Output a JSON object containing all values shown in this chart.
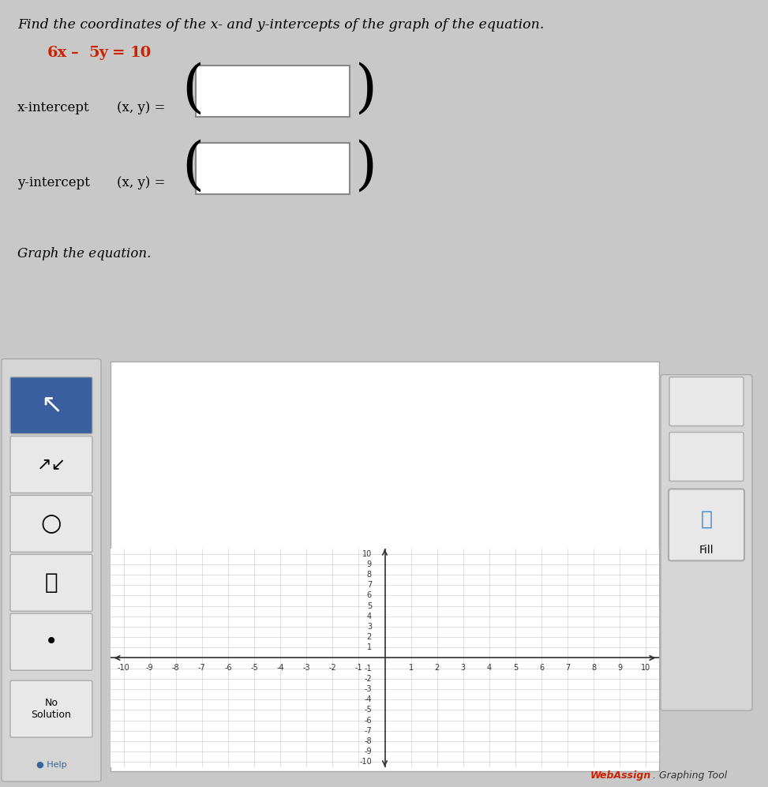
{
  "title_text": "Find the coordinates of the x- and y-intercepts of the graph of the equation.",
  "eq_parts": [
    "6x",
    " – ",
    "5y",
    " = ",
    "10"
  ],
  "eq_color": "#cc2200",
  "x_intercept_label": "x-intercept",
  "y_intercept_label": "y-intercept",
  "xy_label": "(x, y) =",
  "graph_title": "Graph the equation.",
  "webassign_red": "WebAssign",
  "webassign_black": ". Graphing Tool",
  "axis_min": -10,
  "axis_max": 10,
  "grid_color": "#c8c8c8",
  "grid_color2": "#e0e0e0",
  "axis_color": "#333333",
  "bg_white": "#f5f5f5",
  "graph_bg": "#ffffff",
  "outer_bg": "#c8c8c8",
  "panel_bg": "#e0e0e0",
  "sidebar_bg": "#d5d5d5",
  "btn_blue": "#3a5f9e",
  "btn_gray": "#e8e8e8",
  "btn_border": "#aaaaaa",
  "fill_icon_color": "#4488cc",
  "no_sol_text": "No\nSolution",
  "help_text": "Help"
}
